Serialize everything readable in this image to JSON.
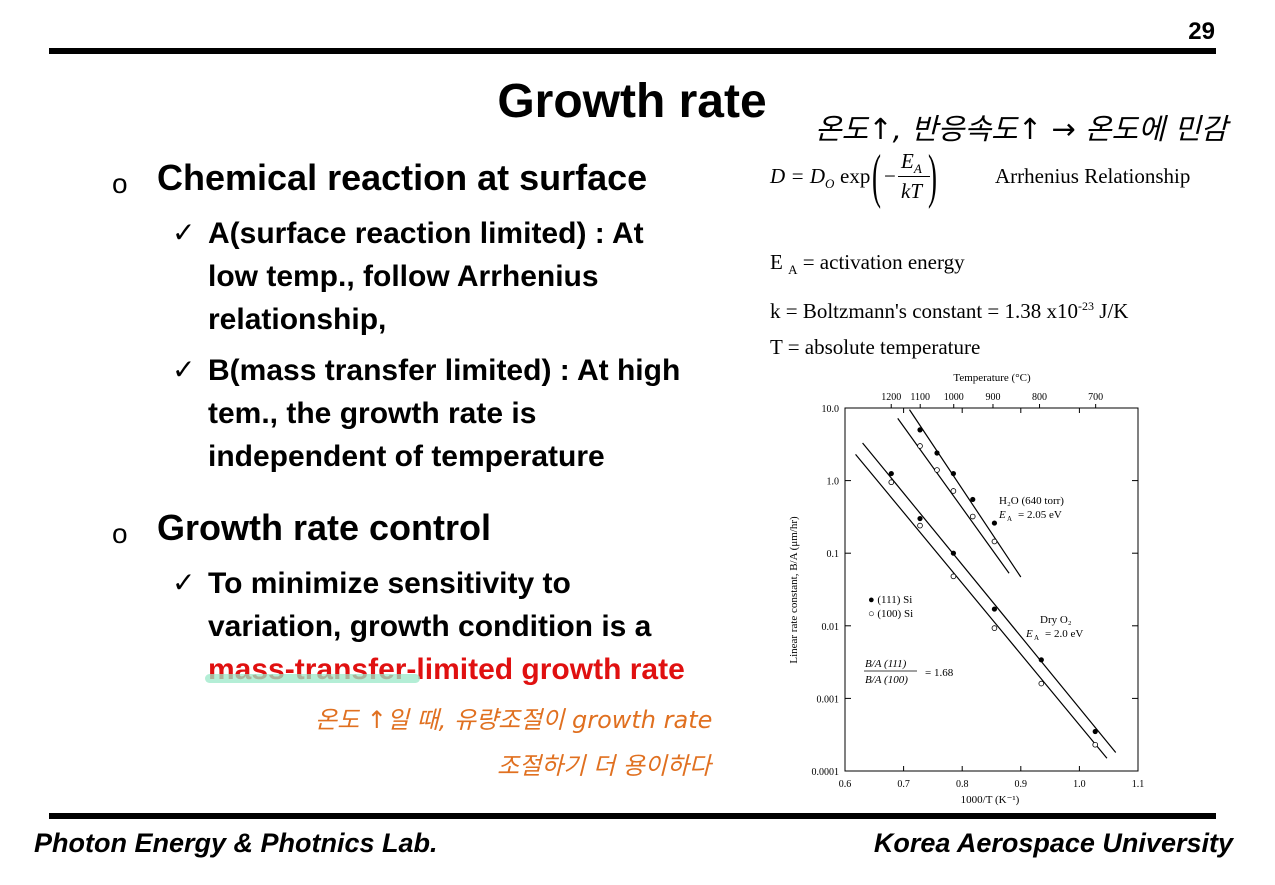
{
  "page_number": "29",
  "title": "Growth rate",
  "section1": {
    "heading": "Chemical reaction at surface",
    "items": [
      {
        "lines": [
          "A(surface reaction limited) : At",
          "low temp.,  follow Arrhenius",
          "relationship,"
        ]
      },
      {
        "lines": [
          "B(mass transfer limited) : At high",
          "tem., the growth rate is",
          "independent of temperature"
        ]
      }
    ]
  },
  "section2": {
    "heading": "Growth rate control",
    "line1": "To minimize sensitivity to",
    "line2": "variation, growth condition is a",
    "line3_red": "mass-transfer-limited growth rate"
  },
  "equation": {
    "lhs": "D = D",
    "lhs_sub": "O",
    "exp": "exp",
    "minus": "−",
    "num": "E",
    "num_sub": "A",
    "den": "kT",
    "label": "Arrhenius Relationship"
  },
  "definitions": {
    "ea_sym": "E",
    "ea_sub": "A",
    "ea_text": "= activation energy",
    "k_text": "k = Boltzmann's constant = 1.38 x10",
    "k_exp": "-23",
    "k_unit": " J/K",
    "t_text": "T = absolute temperature"
  },
  "handwriting": {
    "top": "온도↑, 반응속도↑ → 온도에 민감",
    "bottom_line1": "온도 ↑일 때, 유량조절이 growth rate",
    "bottom_line2": "조절하기 더 용이하다"
  },
  "footer": {
    "left": "Photon Energy & Photnics Lab.",
    "right": "Korea Aerospace University"
  },
  "chart_data": {
    "type": "scatter",
    "top_axis_label": "Temperature (°C)",
    "top_ticks": [
      "1200",
      "1100",
      "1000",
      "900",
      "800",
      "700"
    ],
    "xlabel": "1000/T (K⁻¹)",
    "ylabel": "Linear rate constant, B/A (μm/hr)",
    "x_ticks": [
      "0.6",
      "0.7",
      "0.8",
      "0.9",
      "1.0",
      "1.1"
    ],
    "y_ticks": [
      "10.0",
      "1.0",
      "0.1",
      "0.01",
      "0.001",
      "0.0001"
    ],
    "xlim": [
      0.6,
      1.1
    ],
    "ylim": [
      0.0001,
      10
    ],
    "y_scale": "log",
    "legend": [
      "● (111) Si",
      "○ (100) Si"
    ],
    "ratio_num": "B/A (111)",
    "ratio_den": "B/A (100)",
    "ratio_value": "= 1.68",
    "series": [
      {
        "name": "H₂O (640 torr)",
        "ea_label": "E",
        "ea_sub": "A",
        "ea_value": "=  2.05 eV",
        "line_111": [
          [
            0.71,
            9.5
          ],
          [
            0.9,
            0.047
          ]
        ],
        "line_100": [
          [
            0.69,
            7.2
          ],
          [
            0.88,
            0.053
          ]
        ],
        "points_111": [
          [
            0.728,
            5.0
          ],
          [
            0.757,
            2.4
          ],
          [
            0.785,
            1.25
          ],
          [
            0.818,
            0.55
          ],
          [
            0.855,
            0.26
          ]
        ],
        "points_100": [
          [
            0.728,
            3.0
          ],
          [
            0.757,
            1.4
          ],
          [
            0.785,
            0.72
          ],
          [
            0.818,
            0.32
          ],
          [
            0.855,
            0.145
          ]
        ]
      },
      {
        "name": "Dry O₂",
        "ea_label": "E",
        "ea_sub": "A",
        "ea_value": "=  2.0 eV",
        "line_111": [
          [
            0.63,
            3.3
          ],
          [
            1.062,
            0.00018
          ]
        ],
        "line_100": [
          [
            0.618,
            2.3
          ],
          [
            1.047,
            0.00015
          ]
        ],
        "points_111": [
          [
            0.679,
            1.25
          ],
          [
            0.728,
            0.3
          ],
          [
            0.785,
            0.1
          ],
          [
            0.855,
            0.017
          ],
          [
            0.935,
            0.0034
          ],
          [
            1.027,
            0.00035
          ]
        ],
        "points_100": [
          [
            0.679,
            0.95
          ],
          [
            0.728,
            0.24
          ],
          [
            0.785,
            0.048
          ],
          [
            0.855,
            0.0093
          ],
          [
            0.935,
            0.0016
          ],
          [
            1.027,
            0.00023
          ]
        ]
      }
    ]
  }
}
